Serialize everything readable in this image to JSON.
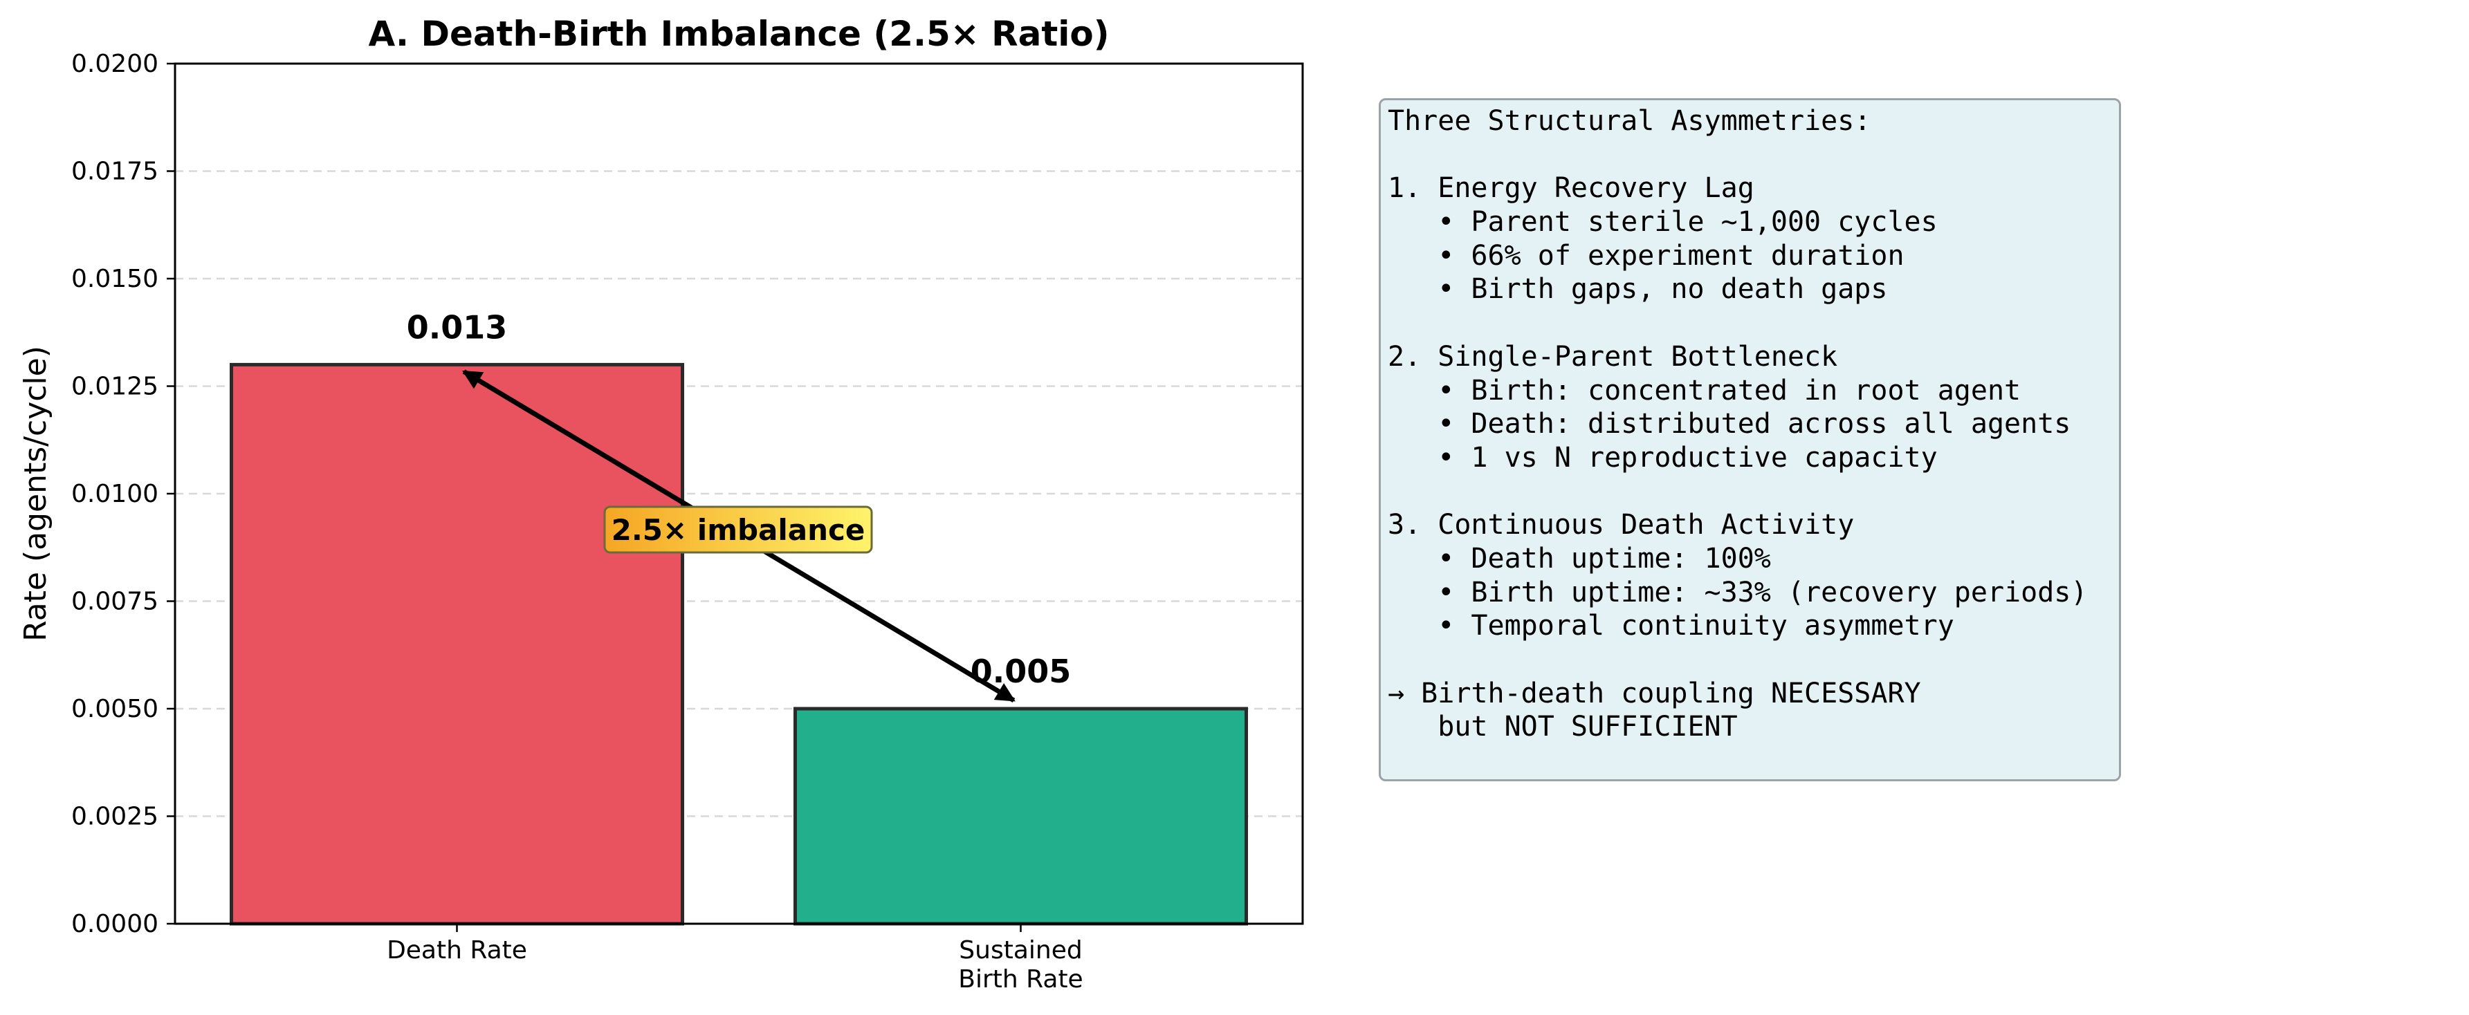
{
  "chart_data": {
    "type": "bar",
    "title": "A. Death-Birth Imbalance (2.5× Ratio)",
    "ylabel": "Rate (agents/cycle)",
    "xlabel": "",
    "ylim": [
      0,
      0.02
    ],
    "yticks": [
      "0.0000",
      "0.0025",
      "0.0050",
      "0.0075",
      "0.0100",
      "0.0125",
      "0.0150",
      "0.0175",
      "0.0200"
    ],
    "grid": "y-dashed",
    "categories": [
      [
        "Death Rate"
      ],
      [
        "Sustained",
        "Birth Rate"
      ]
    ],
    "values": [
      0.013,
      0.005
    ],
    "value_labels": [
      "0.013",
      "0.005"
    ],
    "colors": [
      "#e8535f",
      "#22b08c"
    ],
    "annotation": {
      "text": "2.5× imbalance",
      "arrow": "double-headed between bar tops",
      "box_gradient": [
        "#f5a623",
        "#fff36b"
      ]
    }
  },
  "panel": {
    "lines": [
      "Three Structural Asymmetries:",
      "",
      "1. Energy Recovery Lag",
      "   • Parent sterile ~1,000 cycles",
      "   • 66% of experiment duration",
      "   • Birth gaps, no death gaps",
      "",
      "2. Single-Parent Bottleneck",
      "   • Birth: concentrated in root agent",
      "   • Death: distributed across all agents",
      "   • 1 vs N reproductive capacity",
      "",
      "3. Continuous Death Activity",
      "   • Death uptime: 100%",
      "   • Birth uptime: ~33% (recovery periods)",
      "   • Temporal continuity asymmetry",
      "",
      "→ Birth-death coupling NECESSARY",
      "   but NOT SUFFICIENT"
    ]
  }
}
